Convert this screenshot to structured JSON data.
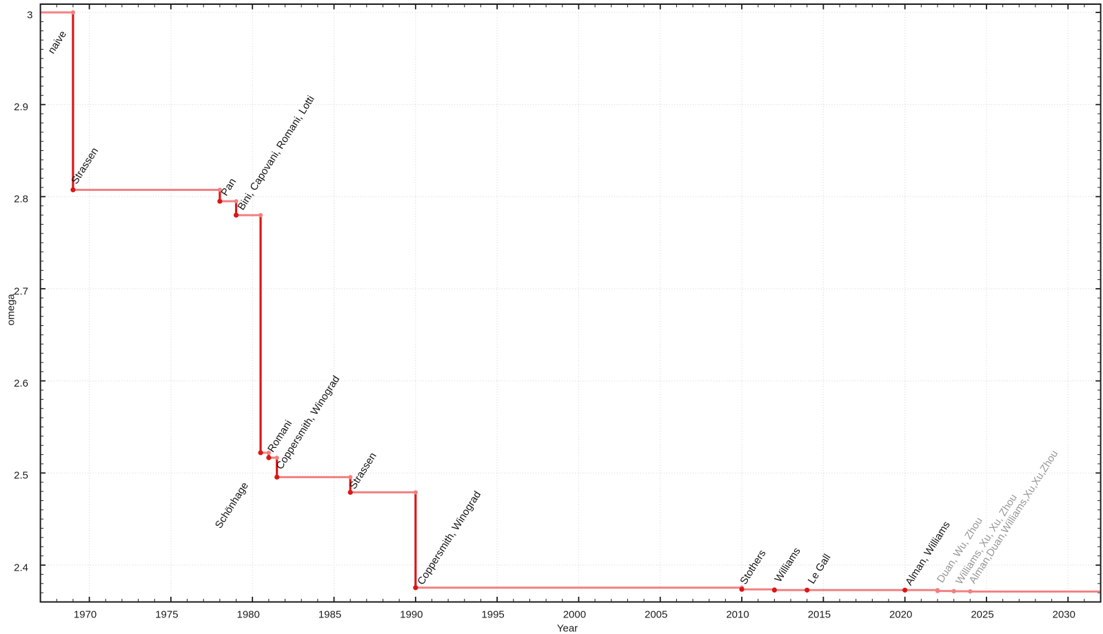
{
  "chart_data": {
    "type": "line",
    "subtype": "step",
    "title": "",
    "xlabel": "Year",
    "ylabel": "omega",
    "xlim": [
      1967,
      2032
    ],
    "ylim": [
      2.36,
      3.009
    ],
    "x_major_ticks": [
      1970,
      1975,
      1980,
      1985,
      1990,
      1995,
      2000,
      2005,
      2010,
      2015,
      2020,
      2025,
      2030
    ],
    "x_minor_tick_step": 1,
    "y_major_ticks": [
      2.4,
      2.5,
      2.6,
      2.7,
      2.8,
      2.9,
      3
    ],
    "y_major_tick_labels": [
      "2.4",
      "2.5",
      "2.6",
      "2.7",
      "2.8",
      "2.9",
      "3"
    ],
    "y_minor_tick_step": 0.01,
    "grid": "dotted lines at major ticks, both axes",
    "legend": "none",
    "colors": {
      "step_line_light": "#f28080",
      "step_line_dark": "#dc1616",
      "marker_light": "#f28080",
      "marker_dark": "#dc1616",
      "label_dark": "#141414",
      "label_muted": "#969696",
      "axis": "#1a1a1a",
      "grid": "#d6d6d6",
      "background": "#ffffff"
    },
    "points": [
      {
        "label": "naive",
        "year": 1967,
        "omega": 3,
        "style": "baseline",
        "label_style": "dark",
        "label_offset": [
          18.7,
          61.0
        ]
      },
      {
        "label": "Strassen",
        "year": 1969,
        "omega": 2.8074,
        "style": "dark",
        "label_style": "dark",
        "label_offset": [
          5.1,
          -7.4
        ]
      },
      {
        "label": "Pan",
        "year": 1978,
        "omega": 2.795,
        "style": "dark",
        "label_style": "dark",
        "label_offset": [
          9.5,
          -6.8
        ]
      },
      {
        "label": "Bini, Capovani, Romani, Lotti",
        "year": 1979,
        "omega": 2.7799,
        "style": "dark",
        "label_style": "dark",
        "label_offset": [
          9.9,
          -6.3
        ]
      },
      {
        "label": "Schönhage",
        "year": 1980.5,
        "omega": 2.522,
        "style": "dark",
        "label_style": "dark",
        "label_offset": [
          -58.3,
          110.7
        ]
      },
      {
        "label": "Romani",
        "year": 1981,
        "omega": 2.5166,
        "style": "dark",
        "label_style": "dark",
        "label_offset": [
          6.1,
          -6.9
        ]
      },
      {
        "label": "Coppersmith, Winograd",
        "year": 1981.5,
        "omega": 2.4955,
        "style": "dark",
        "label_style": "dark",
        "label_offset": [
          6.6,
          -10.3
        ]
      },
      {
        "label": "Strassen",
        "year": 1986,
        "omega": 2.479,
        "style": "dark",
        "label_style": "dark",
        "label_offset": [
          6.3,
          -3.7
        ]
      },
      {
        "label": "Coppersmith, Winograd",
        "year": 1990,
        "omega": 2.3755,
        "style": "dark",
        "label_style": "dark",
        "label_offset": [
          10.4,
          -3.2
        ]
      },
      {
        "label": "Stothers",
        "year": 2010,
        "omega": 2.3737,
        "style": "dark",
        "label_style": "dark",
        "label_offset": [
          5.2,
          -6.1
        ]
      },
      {
        "label": "Williams",
        "year": 2012,
        "omega": 2.372873,
        "style": "dark",
        "label_style": "dark",
        "label_offset": [
          8.0,
          -10.6
        ]
      },
      {
        "label": "Le Gall",
        "year": 2014,
        "omega": 2.3728639,
        "style": "dark",
        "label_style": "dark",
        "label_offset": [
          8.9,
          -8.2
        ]
      },
      {
        "label": "Alman, Williams",
        "year": 2020,
        "omega": 2.3728596,
        "style": "dark",
        "label_style": "dark",
        "label_offset": [
          8.4,
          -5.8
        ]
      },
      {
        "label": "Duan, Wu, Zhou",
        "year": 2022,
        "omega": 2.371866,
        "style": "light",
        "label_style": "muted",
        "label_offset": [
          6.9,
          -11.0
        ]
      },
      {
        "label": "Williams, Xu, Xu, Zhou",
        "year": 2023,
        "omega": 2.371552,
        "style": "light",
        "label_style": "muted",
        "label_offset": [
          10.4,
          -9.1
        ]
      },
      {
        "label": "Alman,Duan,Williams,Xu,Xu,Zhou",
        "year": 2024,
        "omega": 2.371339,
        "style": "light",
        "label_style": "muted",
        "label_offset": [
          6.2,
          -10.3
        ]
      }
    ],
    "point_label_rotation_deg": -57.5
  }
}
